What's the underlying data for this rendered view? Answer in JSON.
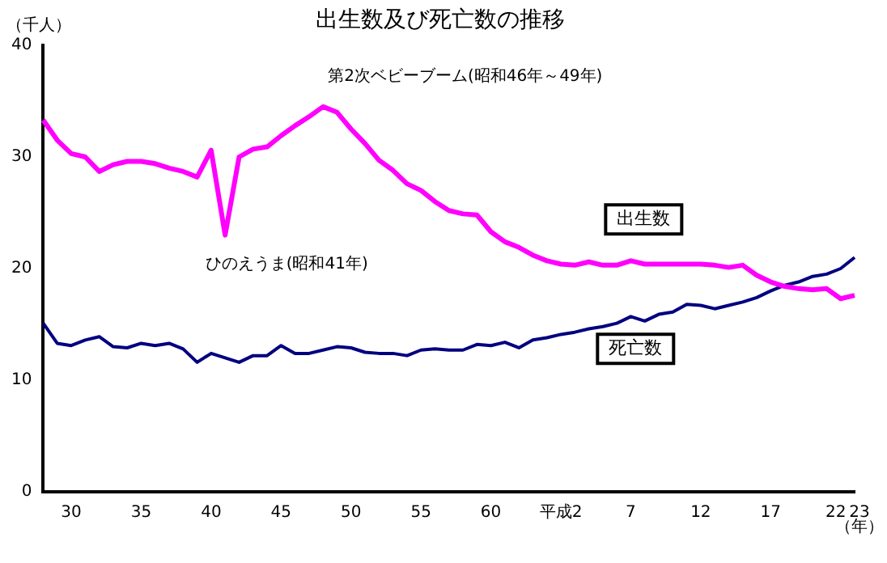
{
  "chart_data": {
    "type": "line",
    "title": "出生数及び死亡数の推移",
    "ylabel": "（千人）",
    "xlabel": "（年）",
    "categories": [
      null,
      null,
      "30",
      null,
      null,
      null,
      null,
      "35",
      null,
      null,
      null,
      null,
      "40",
      null,
      null,
      null,
      null,
      "45",
      null,
      null,
      null,
      null,
      "50",
      null,
      null,
      null,
      null,
      "55",
      null,
      null,
      null,
      null,
      "60",
      null,
      null,
      null,
      null,
      "平成2",
      null,
      null,
      null,
      null,
      "7",
      null,
      null,
      null,
      null,
      "12",
      null,
      null,
      null,
      null,
      "17",
      null,
      null,
      null,
      null,
      "22",
      "23"
    ],
    "series": [
      {
        "name": "出生数",
        "color": "#ff00ff",
        "values": [
          33.3,
          31.5,
          30.3,
          30.0,
          28.7,
          29.3,
          29.6,
          29.6,
          29.4,
          29.0,
          28.7,
          28.2,
          30.6,
          23.0,
          30.0,
          30.7,
          30.9,
          31.9,
          32.8,
          33.6,
          34.5,
          34.0,
          32.5,
          31.2,
          29.7,
          28.8,
          27.6,
          27.0,
          26.0,
          25.2,
          24.9,
          24.8,
          23.3,
          22.4,
          21.9,
          21.2,
          20.7,
          20.4,
          20.3,
          20.6,
          20.3,
          20.3,
          20.7,
          20.4,
          20.4,
          20.4,
          20.4,
          20.4,
          20.3,
          20.1,
          20.3,
          19.4,
          18.8,
          18.4,
          18.2,
          18.1,
          18.2,
          17.3,
          17.6
        ]
      },
      {
        "name": "死亡数",
        "color": "#000080",
        "values": [
          15.1,
          13.3,
          13.1,
          13.6,
          13.9,
          13.0,
          12.9,
          13.3,
          13.1,
          13.3,
          12.8,
          11.6,
          12.4,
          12.0,
          11.6,
          12.2,
          12.2,
          13.1,
          12.4,
          12.4,
          12.7,
          13.0,
          12.9,
          12.5,
          12.4,
          12.4,
          12.2,
          12.7,
          12.8,
          12.7,
          12.7,
          13.2,
          13.1,
          13.4,
          12.9,
          13.6,
          13.8,
          14.1,
          14.3,
          14.6,
          14.8,
          15.1,
          15.7,
          15.3,
          15.9,
          16.1,
          16.8,
          16.7,
          16.4,
          16.7,
          17.0,
          17.4,
          18.0,
          18.5,
          18.8,
          19.3,
          19.5,
          20.0,
          21.0
        ]
      }
    ],
    "ylim": [
      0,
      40
    ],
    "yticks": [
      0,
      10,
      20,
      30,
      40
    ],
    "grid": false,
    "legend": false,
    "marker": "none",
    "line_style": "solid",
    "annotations": [
      "第2次ベビーブーム(昭和46年～49年)",
      "ひのえうま(昭和41年)"
    ]
  }
}
